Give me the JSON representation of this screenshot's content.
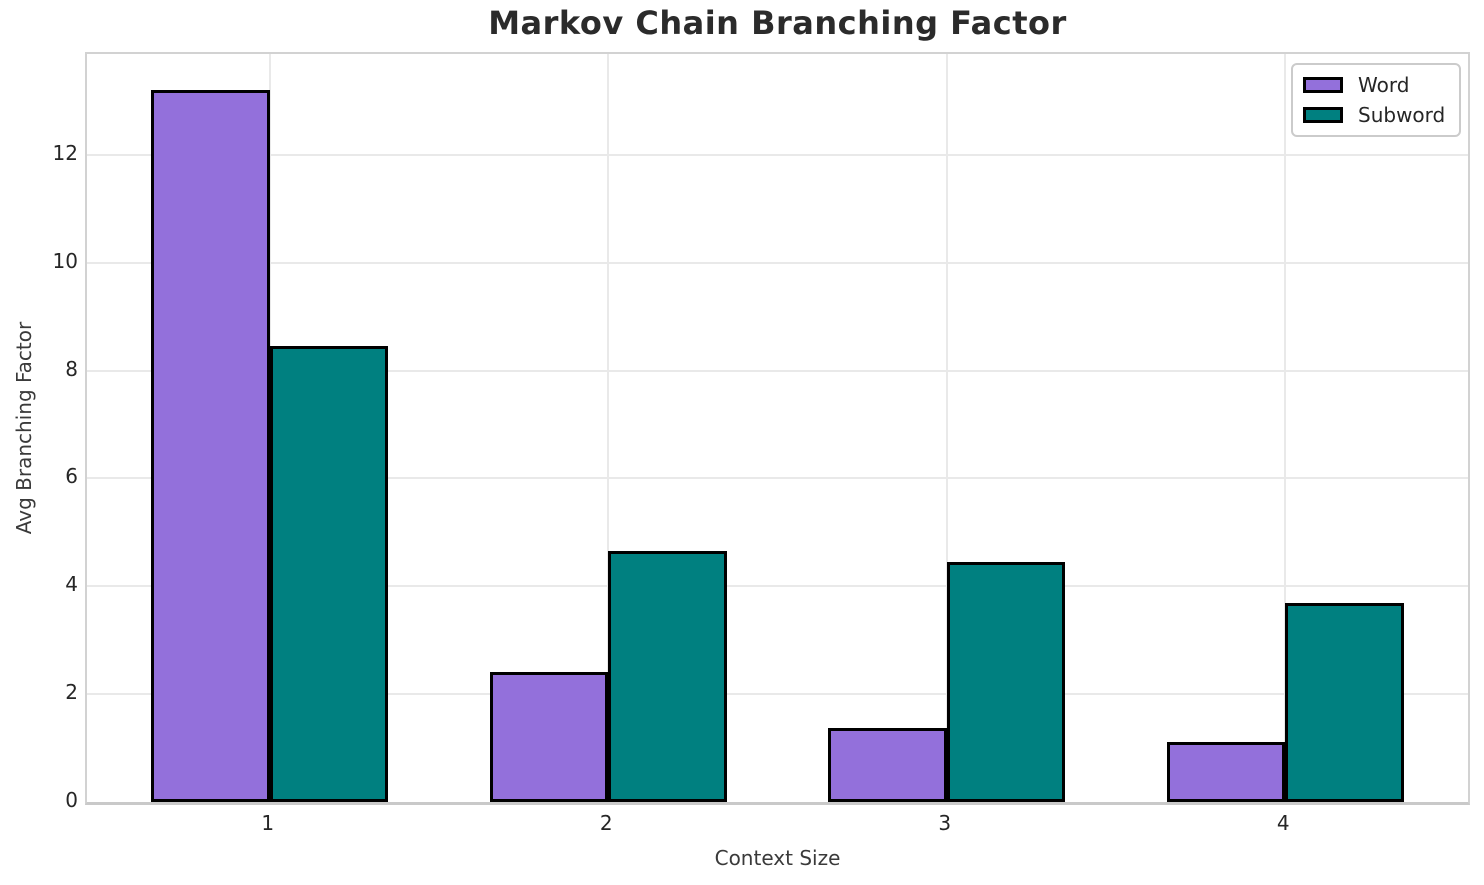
{
  "title": "Markov Chain Branching Factor",
  "axes": {
    "xlabel": "Context Size",
    "ylabel": "Avg Branching Factor"
  },
  "legend": {
    "position": "upper right",
    "items": [
      {
        "label": "Word",
        "color": "#9370DB"
      },
      {
        "label": "Subword",
        "color": "#008080"
      }
    ]
  },
  "colors": {
    "word_bar": "#9370DB",
    "subword_bar": "#008080",
    "bar_edge": "#000000",
    "grid": "#e9e9e9",
    "spine": "#d2d2d2",
    "text": "#262626"
  },
  "chart_data": {
    "type": "bar",
    "title": "Markov Chain Branching Factor",
    "xlabel": "Context Size",
    "ylabel": "Avg Branching Factor",
    "categories": [
      "1",
      "2",
      "3",
      "4"
    ],
    "series": [
      {
        "name": "Word",
        "color": "#9370DB",
        "values": [
          13.2,
          2.41,
          1.37,
          1.11
        ]
      },
      {
        "name": "Subword",
        "color": "#008080",
        "values": [
          8.45,
          4.66,
          4.45,
          3.69
        ]
      }
    ],
    "ylim": [
      0,
      13.87
    ],
    "yticks": [
      0,
      2,
      4,
      6,
      8,
      10,
      12
    ],
    "xlim": [
      0.46,
      4.54
    ],
    "bar_width": 0.35,
    "grid": true,
    "legend_position": "upper right"
  }
}
